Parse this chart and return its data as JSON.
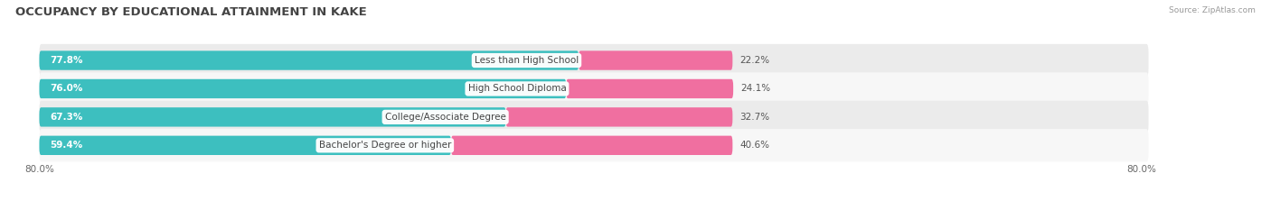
{
  "title": "OCCUPANCY BY EDUCATIONAL ATTAINMENT IN KAKE",
  "source": "Source: ZipAtlas.com",
  "categories": [
    "Less than High School",
    "High School Diploma",
    "College/Associate Degree",
    "Bachelor's Degree or higher"
  ],
  "owner_values": [
    77.8,
    76.0,
    67.3,
    59.4
  ],
  "renter_values": [
    22.2,
    24.1,
    32.7,
    40.6
  ],
  "owner_color": "#3DBFBF",
  "renter_color": "#F06FA0",
  "row_bg_even": "#ebebeb",
  "row_bg_odd": "#f7f7f7",
  "axis_label_left": "80.0%",
  "axis_label_right": "80.0%",
  "title_fontsize": 9.5,
  "source_fontsize": 6.5,
  "bar_label_fontsize": 7.5,
  "category_fontsize": 7.5,
  "axis_tick_fontsize": 7.5,
  "max_value": 80.0,
  "background_color": "#ffffff"
}
